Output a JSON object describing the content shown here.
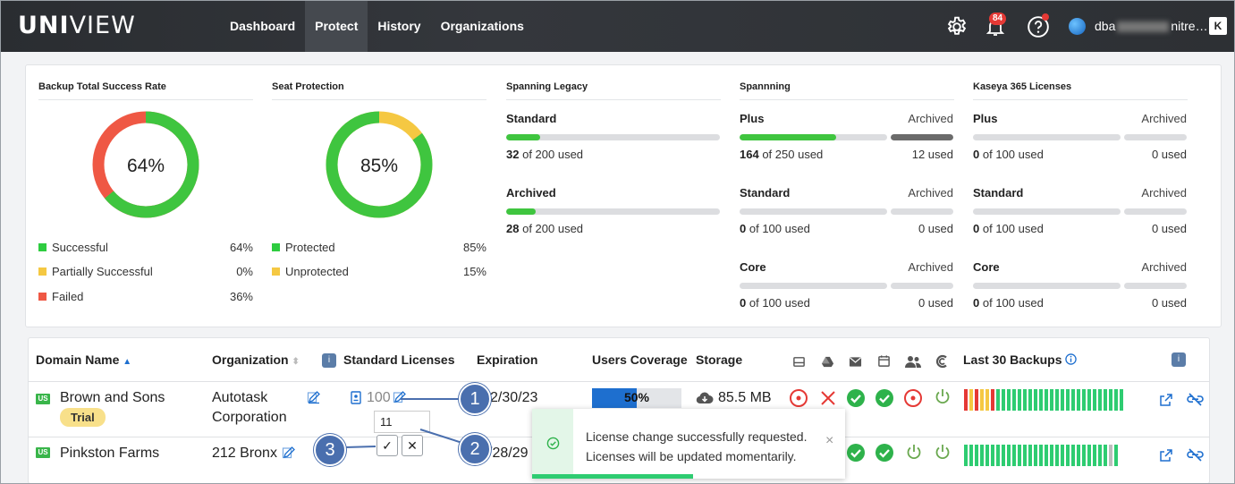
{
  "app": {
    "brand_bold": "UNI",
    "brand_thin": "VIEW"
  },
  "nav": {
    "items": [
      "Dashboard",
      "Protect",
      "History",
      "Organizations"
    ],
    "active": "Protect"
  },
  "topbar": {
    "notifications_count": "84",
    "user_name_start": "dba",
    "user_name_end": "nitre…",
    "k_label": "K"
  },
  "backup_rate": {
    "title": "Backup Total Success Rate",
    "center": "64%",
    "legend": [
      {
        "label": "Successful",
        "pct": "64%",
        "color": "#2ecc40"
      },
      {
        "label": "Partially Successful",
        "pct": "0%",
        "color": "#f5c842"
      },
      {
        "label": "Failed",
        "pct": "36%",
        "color": "#ef5844"
      }
    ]
  },
  "seat_protection": {
    "title": "Seat Protection",
    "center": "85%",
    "legend": [
      {
        "label": "Protected",
        "pct": "85%",
        "color": "#2ecc40"
      },
      {
        "label": "Unprotected",
        "pct": "15%",
        "color": "#f5c842"
      }
    ]
  },
  "spanning_legacy": {
    "title": "Spanning Legacy",
    "rows": [
      {
        "label": "Standard",
        "used": "32",
        "total": "of 200 used",
        "fraction": 0.16
      },
      {
        "label": "Archived",
        "used": "28",
        "total": "of 200 used",
        "fraction": 0.14
      }
    ]
  },
  "spanning": {
    "title": "Spannning",
    "archived_label": "Archived",
    "rows": [
      {
        "label": "Plus",
        "used": "164",
        "total": "of 250 used",
        "fraction": 0.656,
        "archived_used": "12 used",
        "archived_fraction": 1.0
      },
      {
        "label": "Standard",
        "used": "0",
        "total": "of 100 used",
        "fraction": 0,
        "archived_used": "0 used",
        "archived_fraction": 0
      },
      {
        "label": "Core",
        "used": "0",
        "total": "of 100 used",
        "fraction": 0,
        "archived_used": "0 used",
        "archived_fraction": 0
      }
    ]
  },
  "kaseya": {
    "title": "Kaseya 365 Licenses",
    "archived_label": "Archived",
    "rows": [
      {
        "label": "Plus",
        "used": "0",
        "total": "of 100 used",
        "archived_used": "0 used"
      },
      {
        "label": "Standard",
        "used": "0",
        "total": "of 100 used",
        "archived_used": "0 used"
      },
      {
        "label": "Core",
        "used": "0",
        "total": "of 100 used",
        "archived_used": "0 used"
      }
    ]
  },
  "table": {
    "headers": {
      "domain": "Domain Name",
      "org": "Organization",
      "licenses": "Standard Licenses",
      "expiration": "Expiration",
      "coverage": "Users Coverage",
      "storage": "Storage",
      "backups": "Last 30 Backups"
    },
    "rows": [
      {
        "country": "US",
        "domain": "Brown and Sons",
        "tag": "Trial",
        "org_line1": "Autotask",
        "org_line2": "Corporation",
        "licenses": "100",
        "expiration": "2/30/23",
        "coverage": "50%",
        "coverage_fraction": 0.5,
        "storage": "85.5 MB"
      },
      {
        "country": "US",
        "domain": "Pinkston Farms",
        "org_line1": "212 Bronx",
        "expiration": "/28/29"
      }
    ]
  },
  "popup": {
    "value": "11",
    "confirm": "✓",
    "cancel": "✕"
  },
  "callouts": [
    "1",
    "2",
    "3"
  ],
  "toast": {
    "line1": "License change successfully requested.",
    "line2": "Licenses will be updated momentarily.",
    "close": "×"
  }
}
